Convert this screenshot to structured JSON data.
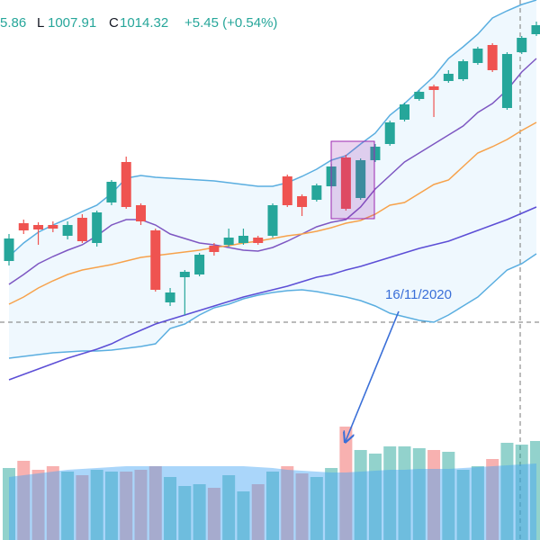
{
  "chart_data": {
    "type": "candlestick",
    "header": {
      "open_tail": "5.86",
      "low_label": "L",
      "low": "1007.91",
      "close_label": "C",
      "close": "1014.32",
      "change": "+5.45 (+0.54%)"
    },
    "annotation": "16/11/2020",
    "ylim": [
      0,
      600
    ],
    "y2lim": [
      0,
      600
    ],
    "up_color": "#26a69a",
    "down_color": "#ef5350",
    "open": [
      310,
      352,
      350,
      350,
      338,
      358,
      330,
      375,
      420,
      372,
      344,
      264,
      292,
      295,
      327,
      328,
      330,
      336,
      338,
      404,
      382,
      378,
      393,
      425,
      380,
      422,
      440,
      467,
      490,
      504,
      510,
      512,
      530,
      550,
      480,
      542,
      562
    ],
    "high": [
      340,
      356,
      353,
      354,
      354,
      362,
      366,
      400,
      426,
      374,
      346,
      280,
      300,
      319,
      330,
      346,
      346,
      338,
      374,
      406,
      384,
      396,
      418,
      428,
      424,
      440,
      466,
      486,
      500,
      506,
      522,
      534,
      548,
      552,
      542,
      560,
      576
    ],
    "low": [
      305,
      340,
      328,
      342,
      334,
      330,
      326,
      372,
      368,
      350,
      276,
      260,
      250,
      293,
      316,
      326,
      328,
      328,
      336,
      370,
      360,
      376,
      391,
      366,
      378,
      420,
      438,
      465,
      488,
      470,
      508,
      510,
      528,
      520,
      478,
      540,
      560
    ],
    "close": [
      335,
      344,
      345,
      346,
      350,
      332,
      364,
      398,
      370,
      354,
      278,
      275,
      298,
      317,
      320,
      336,
      338,
      330,
      372,
      372,
      370,
      394,
      415,
      368,
      422,
      437,
      464,
      484,
      498,
      500,
      518,
      532,
      546,
      522,
      540,
      558,
      572
    ],
    "volume": [
      80,
      88,
      78,
      82,
      76,
      72,
      78,
      76,
      76,
      78,
      82,
      70,
      60,
      62,
      58,
      72,
      54,
      62,
      76,
      82,
      74,
      70,
      80,
      126,
      100,
      96,
      104,
      104,
      102,
      100,
      98,
      78,
      82,
      90,
      108,
      106,
      110
    ],
    "volume_ma": [
      70,
      72,
      74,
      76,
      78,
      79,
      80,
      81,
      82,
      82,
      82,
      82,
      82,
      82,
      82,
      82,
      82,
      81,
      80,
      78,
      77,
      76,
      75,
      75,
      76,
      77,
      78,
      78,
      79,
      79,
      79,
      80,
      81,
      82,
      83,
      84,
      85
    ],
    "series": [
      {
        "name": "upper",
        "color": "#5aaee0",
        "values": [
          315,
          330,
          342,
          350,
          357,
          365,
          372,
          385,
          402,
          405,
          403,
          402,
          401,
          400,
          399,
          397,
          395,
          393,
          393,
          397,
          404,
          412,
          422,
          427,
          440,
          452,
          472,
          485,
          500,
          515,
          535,
          548,
          562,
          580,
          588,
          595,
          600
        ]
      },
      {
        "name": "lower",
        "color": "#5aaee0",
        "values": [
          202,
          204,
          206,
          208,
          209,
          210,
          210,
          211,
          213,
          215,
          218,
          235,
          240,
          250,
          258,
          262,
          268,
          272,
          275,
          277,
          278,
          276,
          273,
          270,
          266,
          260,
          252,
          248,
          244,
          242,
          250,
          260,
          270,
          285,
          300,
          307,
          318
        ]
      },
      {
        "name": "basis",
        "color": "#7e57c2",
        "values": [
          284,
          295,
          307,
          315,
          322,
          328,
          338,
          350,
          356,
          356,
          350,
          340,
          335,
          330,
          328,
          325,
          322,
          321,
          325,
          332,
          340,
          348,
          353,
          356,
          370,
          390,
          405,
          420,
          430,
          440,
          450,
          460,
          475,
          485,
          500,
          520,
          535
        ]
      },
      {
        "name": "ma",
        "color": "#f7a24b",
        "values": [
          262,
          270,
          280,
          288,
          295,
          300,
          303,
          306,
          310,
          314,
          316,
          318,
          320,
          322,
          325,
          327,
          330,
          332,
          335,
          338,
          340,
          343,
          347,
          352,
          355,
          362,
          372,
          375,
          385,
          395,
          400,
          415,
          430,
          437,
          445,
          455,
          464
        ]
      },
      {
        "name": "ma-long",
        "color": "#5c4ed6",
        "values": [
          178,
          184,
          190,
          196,
          202,
          207,
          212,
          218,
          226,
          233,
          240,
          245,
          250,
          255,
          260,
          265,
          270,
          274,
          278,
          282,
          287,
          292,
          295,
          300,
          304,
          309,
          314,
          319,
          324,
          328,
          332,
          338,
          344,
          350,
          356,
          363,
          370
        ]
      }
    ]
  }
}
